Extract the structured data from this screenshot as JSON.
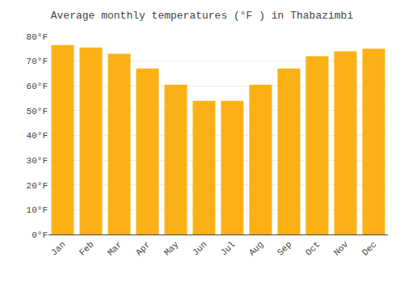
{
  "chart_data": {
    "type": "bar",
    "title": "Average monthly temperatures (°F ) in Thabazimbi",
    "categories": [
      "Jan",
      "Feb",
      "Mar",
      "Apr",
      "May",
      "Jun",
      "Jul",
      "Aug",
      "Sep",
      "Oct",
      "Nov",
      "Dec"
    ],
    "values": [
      76.5,
      75.5,
      73,
      67,
      60.5,
      54,
      54,
      60.5,
      67,
      72,
      74,
      75
    ],
    "color": "#FBB116",
    "ylim": [
      0,
      80
    ],
    "yticks": [
      {
        "value": 0,
        "label": "0°F"
      },
      {
        "value": 10,
        "label": "10°F"
      },
      {
        "value": 20,
        "label": "20°F"
      },
      {
        "value": 30,
        "label": "30°F"
      },
      {
        "value": 40,
        "label": "40°F"
      },
      {
        "value": 50,
        "label": "50°F"
      },
      {
        "value": 60,
        "label": "60°F"
      },
      {
        "value": 70,
        "label": "70°F"
      },
      {
        "value": 80,
        "label": "80°F"
      }
    ],
    "grid": true
  }
}
